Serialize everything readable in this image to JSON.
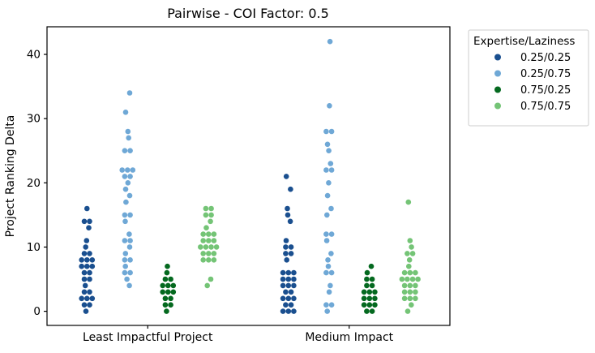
{
  "chart_data": {
    "type": "scatter",
    "subtype": "strip-swarm",
    "title": "Pairwise - COI Factor: 0.5",
    "xlabel": "",
    "ylabel": "Project Ranking Delta",
    "categories": [
      "Least Impactful Project",
      "Medium Impact"
    ],
    "yticks": [
      0,
      10,
      20,
      30,
      40
    ],
    "ylim": [
      -2.2,
      44.3
    ],
    "grid": false,
    "legend_title": "Expertise/Laziness",
    "legend_position": "outside-upper-right",
    "marker": "dot",
    "series": [
      {
        "name": "0.25/0.25",
        "color": "#1a4f8f",
        "values_by_category": [
          [
            16,
            14,
            14,
            13,
            11,
            10,
            9,
            9,
            8,
            8,
            8,
            7,
            7,
            7,
            6,
            6,
            5,
            5,
            4,
            3,
            3,
            2,
            2,
            2,
            1,
            1,
            0
          ],
          [
            21,
            19,
            16,
            15,
            14,
            11,
            10,
            10,
            9,
            9,
            8,
            6,
            6,
            6,
            5,
            5,
            5,
            4,
            4,
            4,
            3,
            3,
            2,
            2,
            2,
            1,
            1,
            0,
            0,
            0
          ]
        ]
      },
      {
        "name": "0.25/0.75",
        "color": "#6fa8d6",
        "values_by_category": [
          [
            34,
            31,
            28,
            27,
            25,
            25,
            22,
            22,
            22,
            21,
            21,
            20,
            19,
            18,
            17,
            15,
            15,
            14,
            12,
            11,
            11,
            10,
            9,
            8,
            8,
            7,
            6,
            6,
            5,
            4
          ],
          [
            42,
            32,
            28,
            28,
            26,
            25,
            23,
            22,
            22,
            20,
            18,
            16,
            15,
            12,
            12,
            11,
            9,
            8,
            7,
            6,
            6,
            4,
            3,
            1,
            1,
            0
          ]
        ]
      },
      {
        "name": "0.75/0.25",
        "color": "#04691f",
        "values_by_category": [
          [
            7,
            6,
            5,
            5,
            4,
            4,
            4,
            3,
            3,
            3,
            2,
            2,
            1,
            1,
            0
          ],
          [
            7,
            6,
            5,
            5,
            4,
            4,
            3,
            3,
            3,
            2,
            2,
            2,
            1,
            1,
            1,
            0,
            0
          ]
        ]
      },
      {
        "name": "0.75/0.75",
        "color": "#74c476",
        "values_by_category": [
          [
            16,
            16,
            15,
            15,
            14,
            13,
            12,
            12,
            12,
            11,
            11,
            11,
            10,
            10,
            10,
            10,
            9,
            9,
            9,
            8,
            8,
            8,
            5,
            4
          ],
          [
            17,
            11,
            10,
            9,
            9,
            8,
            7,
            6,
            6,
            6,
            5,
            5,
            5,
            5,
            4,
            4,
            4,
            3,
            3,
            3,
            2,
            2,
            2,
            1,
            0
          ]
        ]
      }
    ]
  },
  "style": {
    "spine_color": "#000000",
    "legend_border_color": "#cccccc",
    "background": "#ffffff"
  }
}
